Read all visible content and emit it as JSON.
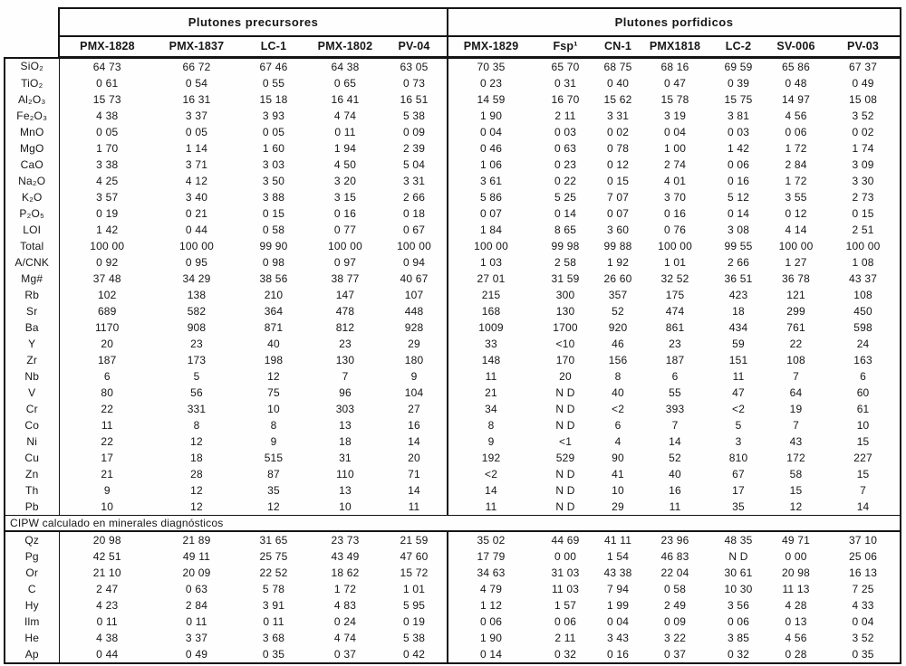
{
  "table": {
    "groups": [
      {
        "label": "Plutones precursores",
        "columns": [
          "PMX-1828",
          "PMX-1837",
          "LC-1",
          "PMX-1802",
          "PV-04"
        ]
      },
      {
        "label": "Plutones porfidicos",
        "columns": [
          "PMX-1829",
          "Fsp¹",
          "CN-1",
          "PMX1818",
          "LC-2",
          "SV-006",
          "PV-03"
        ]
      }
    ],
    "main_rows": [
      {
        "label": "SiO₂",
        "values": [
          "64 73",
          "66 72",
          "67 46",
          "64 38",
          "63 05",
          "70 35",
          "65 70",
          "68 75",
          "68 16",
          "69 59",
          "65 86",
          "67 37"
        ]
      },
      {
        "label": "TiO₂",
        "values": [
          "0 61",
          "0 54",
          "0 55",
          "0 65",
          "0 73",
          "0 23",
          "0 31",
          "0 40",
          "0 47",
          "0 39",
          "0 48",
          "0 49"
        ]
      },
      {
        "label": "Al₂O₃",
        "values": [
          "15 73",
          "16 31",
          "15 18",
          "16 41",
          "16 51",
          "14 59",
          "16 70",
          "15 62",
          "15 78",
          "15 75",
          "14 97",
          "15 08"
        ]
      },
      {
        "label": "Fe₂O₃",
        "values": [
          "4 38",
          "3 37",
          "3 93",
          "4 74",
          "5 38",
          "1 90",
          "2 11",
          "3 31",
          "3 19",
          "3 81",
          "4 56",
          "3 52"
        ]
      },
      {
        "label": "MnO",
        "values": [
          "0 05",
          "0 05",
          "0 05",
          "0 11",
          "0 09",
          "0 04",
          "0 03",
          "0 02",
          "0 04",
          "0 03",
          "0 06",
          "0 02"
        ]
      },
      {
        "label": "MgO",
        "values": [
          "1 70",
          "1 14",
          "1 60",
          "1 94",
          "2 39",
          "0 46",
          "0 63",
          "0 78",
          "1 00",
          "1 42",
          "1 72",
          "1 74"
        ]
      },
      {
        "label": "CaO",
        "values": [
          "3 38",
          "3 71",
          "3 03",
          "4 50",
          "5 04",
          "1 06",
          "0 23",
          "0 12",
          "2 74",
          "0 06",
          "2 84",
          "3 09"
        ]
      },
      {
        "label": "Na₂O",
        "values": [
          "4 25",
          "4 12",
          "3 50",
          "3 20",
          "3 31",
          "3 61",
          "0 22",
          "0 15",
          "4 01",
          "0 16",
          "1 72",
          "3 30"
        ]
      },
      {
        "label": "K₂O",
        "values": [
          "3 57",
          "3 40",
          "3 88",
          "3 15",
          "2 66",
          "5 86",
          "5 25",
          "7 07",
          "3 70",
          "5 12",
          "3 55",
          "2 73"
        ]
      },
      {
        "label": "P₂O₅",
        "values": [
          "0 19",
          "0 21",
          "0 15",
          "0 16",
          "0 18",
          "0 07",
          "0 14",
          "0 07",
          "0 16",
          "0 14",
          "0 12",
          "0 15"
        ]
      },
      {
        "label": "LOI",
        "values": [
          "1 42",
          "0 44",
          "0 58",
          "0 77",
          "0 67",
          "1 84",
          "8 65",
          "3 60",
          "0 76",
          "3 08",
          "4 14",
          "2 51"
        ]
      },
      {
        "label": "Total",
        "values": [
          "100 00",
          "100 00",
          "99 90",
          "100 00",
          "100 00",
          "100 00",
          "99 98",
          "99 88",
          "100 00",
          "99 55",
          "100 00",
          "100 00"
        ]
      },
      {
        "label": "A/CNK",
        "values": [
          "0 92",
          "0 95",
          "0 98",
          "0 97",
          "0 94",
          "1 03",
          "2 58",
          "1 92",
          "1 01",
          "2 66",
          "1 27",
          "1 08"
        ]
      },
      {
        "label": "Mg#",
        "values": [
          "37 48",
          "34 29",
          "38 56",
          "38 77",
          "40 67",
          "27 01",
          "31 59",
          "26 60",
          "32 52",
          "36 51",
          "36 78",
          "43 37"
        ]
      },
      {
        "label": "Rb",
        "values": [
          "102",
          "138",
          "210",
          "147",
          "107",
          "215",
          "300",
          "357",
          "175",
          "423",
          "121",
          "108"
        ]
      },
      {
        "label": "Sr",
        "values": [
          "689",
          "582",
          "364",
          "478",
          "448",
          "168",
          "130",
          "52",
          "474",
          "18",
          "299",
          "450"
        ]
      },
      {
        "label": "Ba",
        "values": [
          "1170",
          "908",
          "871",
          "812",
          "928",
          "1009",
          "1700",
          "920",
          "861",
          "434",
          "761",
          "598"
        ]
      },
      {
        "label": "Y",
        "values": [
          "20",
          "23",
          "40",
          "23",
          "29",
          "33",
          "<10",
          "46",
          "23",
          "59",
          "22",
          "24"
        ]
      },
      {
        "label": "Zr",
        "values": [
          "187",
          "173",
          "198",
          "130",
          "180",
          "148",
          "170",
          "156",
          "187",
          "151",
          "108",
          "163"
        ]
      },
      {
        "label": "Nb",
        "values": [
          "6",
          "5",
          "12",
          "7",
          "9",
          "11",
          "20",
          "8",
          "6",
          "11",
          "7",
          "6"
        ]
      },
      {
        "label": "V",
        "values": [
          "80",
          "56",
          "75",
          "96",
          "104",
          "21",
          "N D",
          "40",
          "55",
          "47",
          "64",
          "60"
        ]
      },
      {
        "label": "Cr",
        "values": [
          "22",
          "331",
          "10",
          "303",
          "27",
          "34",
          "N D",
          "<2",
          "393",
          "<2",
          "19",
          "61"
        ]
      },
      {
        "label": "Co",
        "values": [
          "11",
          "8",
          "8",
          "13",
          "16",
          "8",
          "N D",
          "6",
          "7",
          "5",
          "7",
          "10"
        ]
      },
      {
        "label": "Ni",
        "values": [
          "22",
          "12",
          "9",
          "18",
          "14",
          "9",
          "<1",
          "4",
          "14",
          "3",
          "43",
          "15"
        ]
      },
      {
        "label": "Cu",
        "values": [
          "17",
          "18",
          "515",
          "31",
          "20",
          "192",
          "529",
          "90",
          "52",
          "810",
          "172",
          "227"
        ]
      },
      {
        "label": "Zn",
        "values": [
          "21",
          "28",
          "87",
          "110",
          "71",
          "<2",
          "N D",
          "41",
          "40",
          "67",
          "58",
          "15"
        ]
      },
      {
        "label": "Th",
        "values": [
          "9",
          "12",
          "35",
          "13",
          "14",
          "14",
          "N D",
          "10",
          "16",
          "17",
          "15",
          "7"
        ]
      },
      {
        "label": "Pb",
        "values": [
          "10",
          "12",
          "12",
          "10",
          "11",
          "11",
          "N D",
          "29",
          "11",
          "35",
          "12",
          "14"
        ]
      }
    ],
    "cipw_header": "CIPW calculado en minerales diagnósticos",
    "cipw_rows": [
      {
        "label": "Qz",
        "values": [
          "20 98",
          "21 89",
          "31 65",
          "23 73",
          "21 59",
          "35 02",
          "44 69",
          "41 11",
          "23 96",
          "48 35",
          "49 71",
          "37 10"
        ]
      },
      {
        "label": "Pg",
        "values": [
          "42 51",
          "49 11",
          "25 75",
          "43 49",
          "47 60",
          "17 79",
          "0 00",
          "1 54",
          "46 83",
          "N D",
          "0 00",
          "25 06"
        ]
      },
      {
        "label": "Or",
        "values": [
          "21 10",
          "20 09",
          "22 52",
          "18 62",
          "15 72",
          "34 63",
          "31 03",
          "43 38",
          "22 04",
          "30 61",
          "20 98",
          "16 13"
        ]
      },
      {
        "label": "C",
        "values": [
          "2 47",
          "0 63",
          "5 78",
          "1 72",
          "1 01",
          "4 79",
          "11 03",
          "7 94",
          "0 58",
          "10 30",
          "11 13",
          "7 25"
        ]
      },
      {
        "label": "Hy",
        "values": [
          "4 23",
          "2 84",
          "3 91",
          "4 83",
          "5 95",
          "1 12",
          "1 57",
          "1 99",
          "2 49",
          "3 56",
          "4 28",
          "4 33"
        ]
      },
      {
        "label": "Ilm",
        "values": [
          "0 11",
          "0 11",
          "0 11",
          "0 24",
          "0 19",
          "0 06",
          "0 06",
          "0 04",
          "0 09",
          "0 06",
          "0 13",
          "0 04"
        ]
      },
      {
        "label": "He",
        "values": [
          "4 38",
          "3 37",
          "3 68",
          "4 74",
          "5 38",
          "1 90",
          "2 11",
          "3 43",
          "3 22",
          "3 85",
          "4 56",
          "3 52"
        ]
      },
      {
        "label": "Ap",
        "values": [
          "0 44",
          "0 49",
          "0 35",
          "0 37",
          "0 42",
          "0 14",
          "0 32",
          "0 16",
          "0 37",
          "0 32",
          "0 28",
          "0 35"
        ]
      }
    ]
  },
  "colors": {
    "border": "#141414",
    "text": "#161616",
    "background": "#fefefe"
  }
}
